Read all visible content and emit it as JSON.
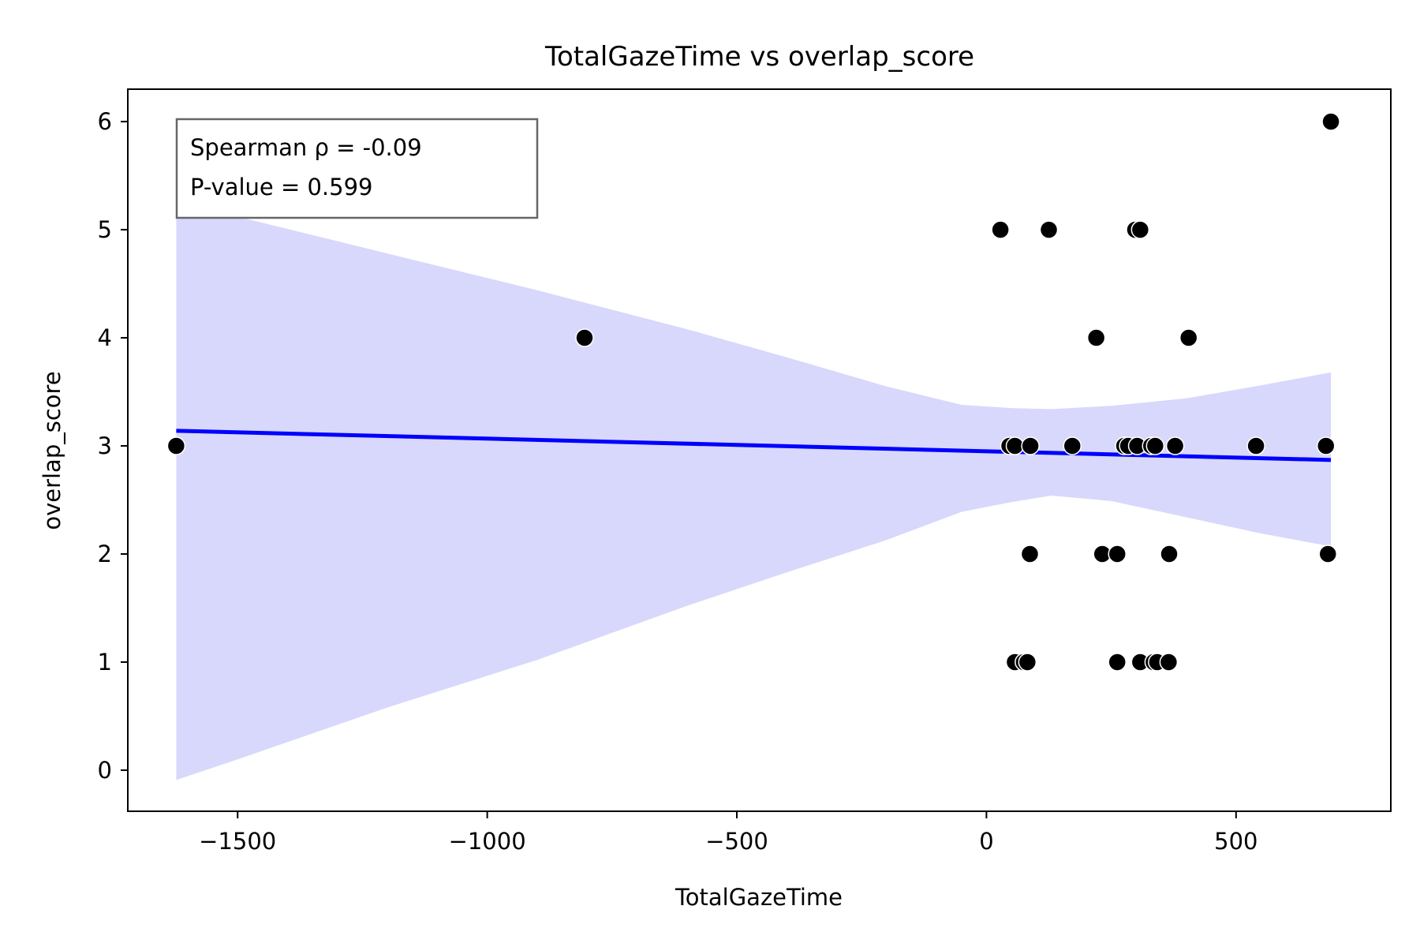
{
  "chart_data": {
    "type": "scatter",
    "title": "TotalGazeTime vs overlap_score",
    "xlabel": "TotalGazeTime",
    "ylabel": "overlap_score",
    "xlim": [
      -1720,
      810
    ],
    "ylim": [
      -0.38,
      6.3
    ],
    "xticks": [
      -1500,
      -1000,
      -500,
      0,
      500
    ],
    "xtick_labels": [
      "−1500",
      "−1000",
      "−500",
      "0",
      "500"
    ],
    "yticks": [
      0,
      1,
      2,
      3,
      4,
      5,
      6
    ],
    "ytick_labels": [
      "0",
      "1",
      "2",
      "3",
      "4",
      "5",
      "6"
    ],
    "grid": false,
    "annotation_lines": [
      "Spearman ρ = -0.09",
      "P-value = 0.599"
    ],
    "annotation_placement": "top-left",
    "colors": {
      "points": "#000000",
      "regression_line": "#0000ff",
      "confidence_band": "#d8d8fc",
      "annotation_border": "#666666"
    },
    "points": [
      {
        "x": -1623,
        "y": 3
      },
      {
        "x": -805,
        "y": 4
      },
      {
        "x": 28,
        "y": 5
      },
      {
        "x": 125,
        "y": 5
      },
      {
        "x": 298,
        "y": 5
      },
      {
        "x": 308,
        "y": 5
      },
      {
        "x": 220,
        "y": 4
      },
      {
        "x": 405,
        "y": 4
      },
      {
        "x": 46,
        "y": 3
      },
      {
        "x": 57,
        "y": 3
      },
      {
        "x": 88,
        "y": 3
      },
      {
        "x": 172,
        "y": 3
      },
      {
        "x": 276,
        "y": 3
      },
      {
        "x": 284,
        "y": 3
      },
      {
        "x": 302,
        "y": 3
      },
      {
        "x": 330,
        "y": 3
      },
      {
        "x": 338,
        "y": 3
      },
      {
        "x": 378,
        "y": 3
      },
      {
        "x": 540,
        "y": 3
      },
      {
        "x": 680,
        "y": 3
      },
      {
        "x": 87,
        "y": 2
      },
      {
        "x": 232,
        "y": 2
      },
      {
        "x": 262,
        "y": 2
      },
      {
        "x": 366,
        "y": 2
      },
      {
        "x": 684,
        "y": 2
      },
      {
        "x": 57,
        "y": 1
      },
      {
        "x": 75,
        "y": 1
      },
      {
        "x": 82,
        "y": 1
      },
      {
        "x": 262,
        "y": 1
      },
      {
        "x": 308,
        "y": 1
      },
      {
        "x": 335,
        "y": 1
      },
      {
        "x": 342,
        "y": 1
      },
      {
        "x": 365,
        "y": 1
      },
      {
        "x": 690,
        "y": 6
      }
    ],
    "regression_line": {
      "x": [
        -1623,
        690
      ],
      "y": [
        3.14,
        2.87
      ]
    },
    "confidence_band": {
      "x": [
        -1623,
        -1500,
        -1200,
        -900,
        -600,
        -400,
        -200,
        -50,
        50,
        130,
        250,
        400,
        550,
        690
      ],
      "upper": [
        5.29,
        5.12,
        4.78,
        4.44,
        4.08,
        3.82,
        3.55,
        3.38,
        3.35,
        3.34,
        3.37,
        3.44,
        3.56,
        3.68
      ],
      "lower": [
        -0.09,
        0.1,
        0.58,
        1.02,
        1.52,
        1.83,
        2.13,
        2.39,
        2.48,
        2.54,
        2.49,
        2.34,
        2.19,
        2.07
      ]
    }
  }
}
